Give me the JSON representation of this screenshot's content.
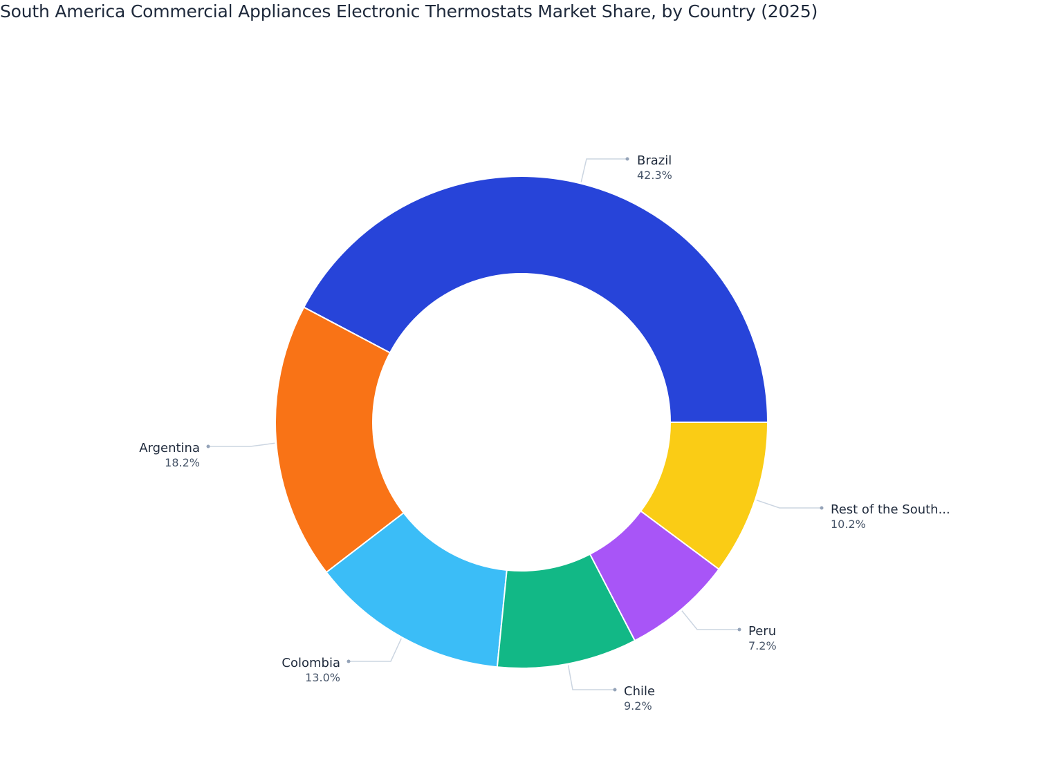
{
  "title": "South America Commercial Appliances Electronic Thermostats Market Share, by Country (2025)",
  "chart_data": {
    "type": "pie",
    "subtype": "donut",
    "title": "South America Commercial Appliances Electronic Thermostats Market Share, by Country (2025)",
    "categories": [
      "Brazil",
      "Argentina",
      "Colombia",
      "Chile",
      "Peru",
      "Rest of the South..."
    ],
    "values": [
      42.3,
      18.2,
      13.0,
      9.2,
      7.2,
      10.2
    ],
    "labels": [
      "42.3%",
      "18.2%",
      "13.0%",
      "9.2%",
      "7.2%",
      "10.2%"
    ],
    "colors": [
      "#2744d9",
      "#f97316",
      "#3bbdf7",
      "#12b886",
      "#a855f7",
      "#facc15"
    ],
    "legend": "none (outside labels with leader lines)",
    "start_angle_deg": 0,
    "direction": "counterclockwise"
  }
}
